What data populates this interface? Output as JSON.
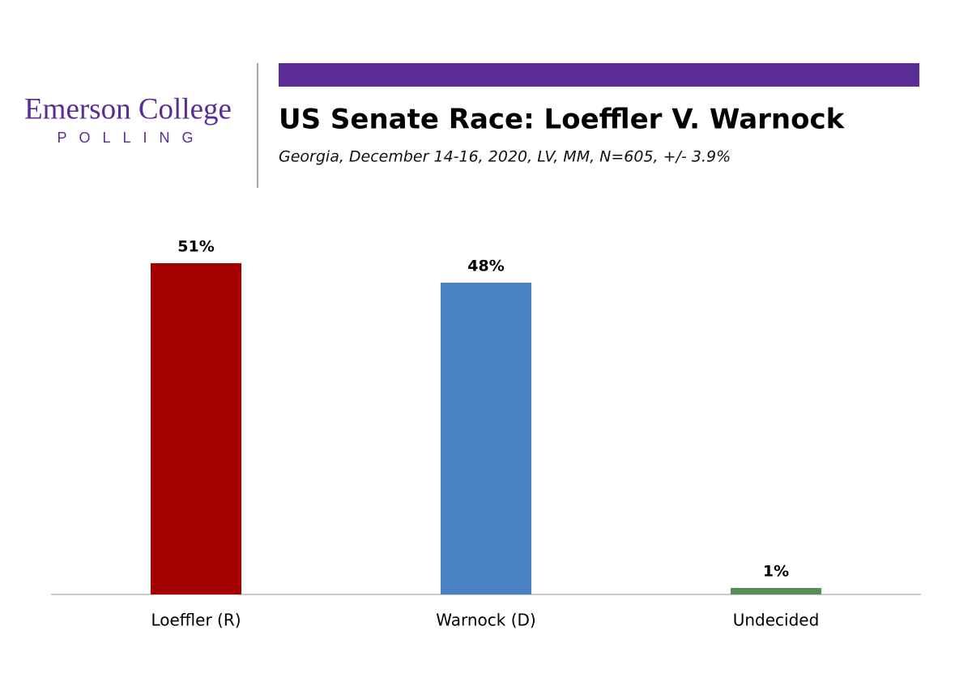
{
  "logo": {
    "name": "Emerson College",
    "tagline": "POLLING"
  },
  "chart_data": {
    "type": "bar",
    "title": "US Senate Race: Loeffler V. Warnock",
    "subtitle": "Georgia, December 14-16, 2020, LV, MM, N=605, +/- 3.9%",
    "categories": [
      "Loeffler (R)",
      "Warnock (D)",
      "Undecided"
    ],
    "values": [
      51,
      48,
      1
    ],
    "value_labels": [
      "51%",
      "48%",
      "1%"
    ],
    "colors": [
      "#a50000",
      "#4a81c0",
      "#5a8f5a"
    ]
  }
}
